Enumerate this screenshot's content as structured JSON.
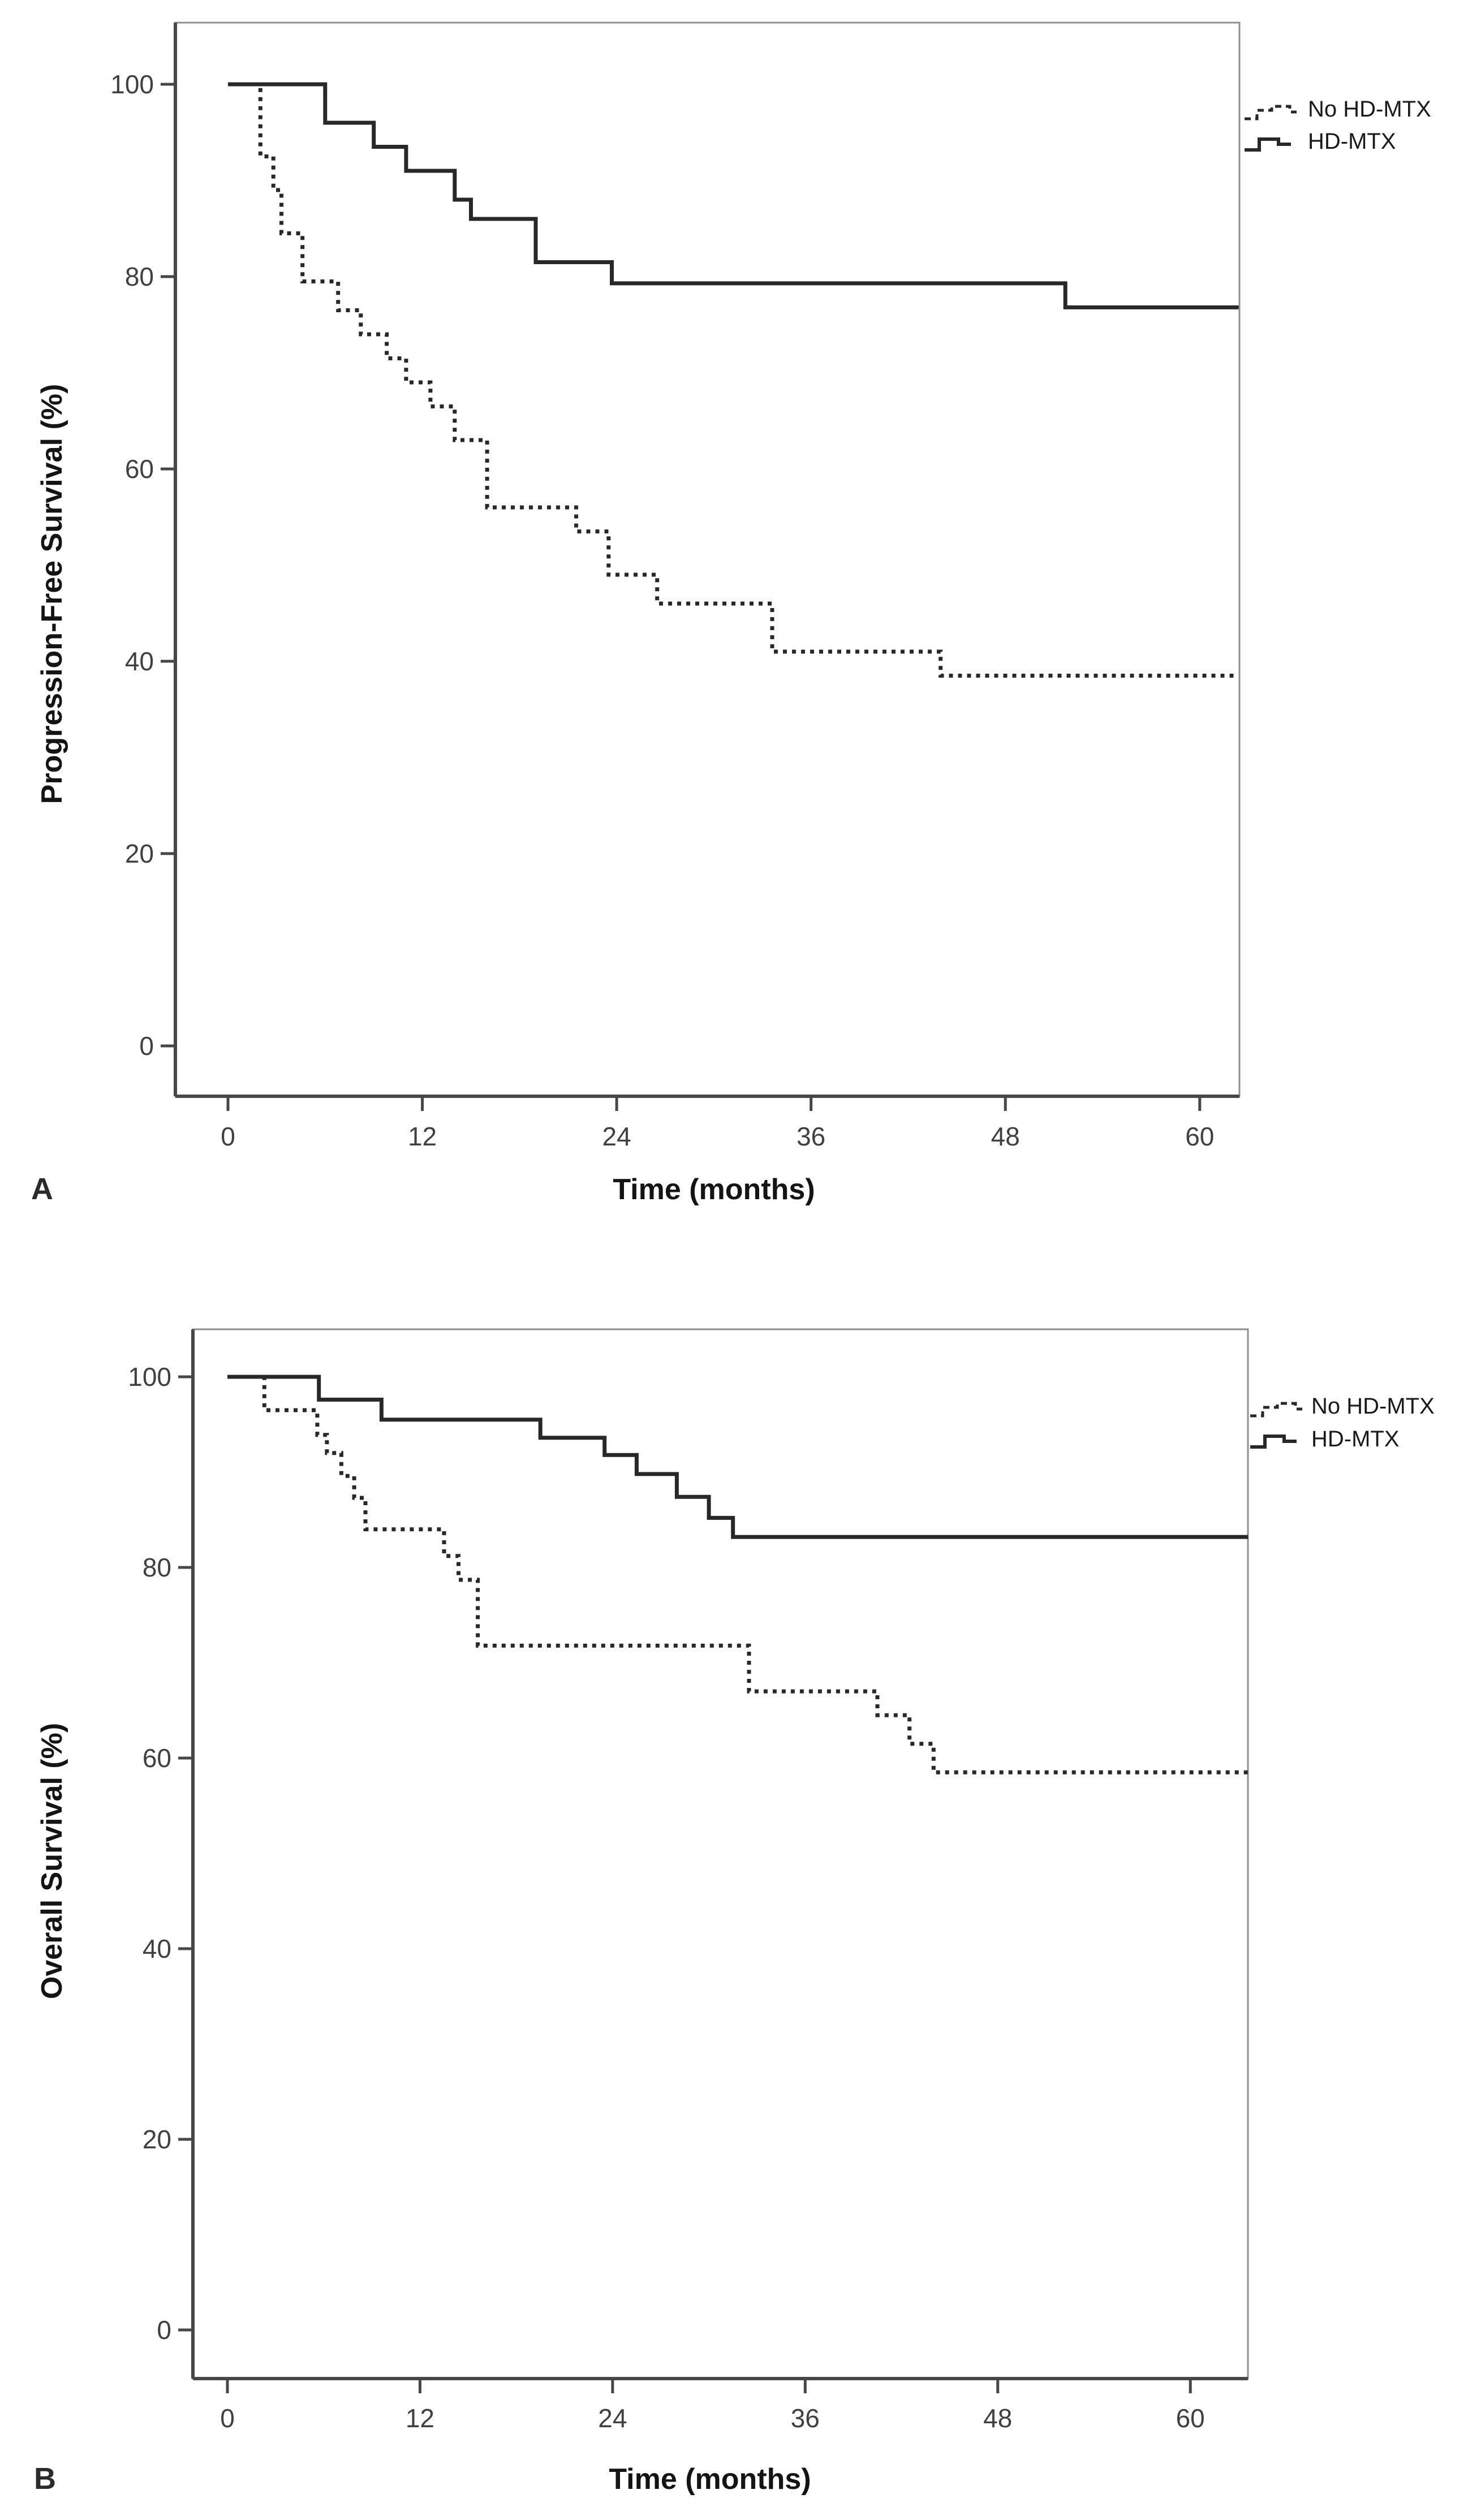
{
  "figure": {
    "background": "#ffffff",
    "curve_color": "#282828",
    "frame_color": "#8f8f8f",
    "axis_color": "#474747",
    "tick_text_color": "#404040",
    "panels": [
      {
        "panel_label": "A",
        "ylabel": "Progression-Free Survival (%)",
        "xlabel": "Time (months)",
        "legend": [
          {
            "label": "No HD-MTX",
            "style": "dotted"
          },
          {
            "label": "HD-MTX",
            "style": "solid"
          }
        ],
        "ytick_labels": [
          "100",
          "80",
          "60",
          "40",
          "20",
          "0"
        ],
        "xtick_labels": [
          "0",
          "12",
          "24",
          "36",
          "48",
          "60"
        ]
      },
      {
        "panel_label": "B",
        "ylabel": "Overall Survival (%)",
        "xlabel": "Time (months)",
        "legend": [
          {
            "label": "No HD-MTX",
            "style": "dotted"
          },
          {
            "label": "HD-MTX",
            "style": "solid"
          }
        ],
        "ytick_labels": [
          "100",
          "80",
          "60",
          "40",
          "20",
          "0"
        ],
        "xtick_labels": [
          "0",
          "12",
          "24",
          "36",
          "48",
          "60"
        ]
      }
    ]
  },
  "chart_data": [
    {
      "type": "line",
      "subtype": "kaplan-meier-step",
      "panel": "A",
      "title": "",
      "xlabel": "Time (months)",
      "ylabel": "Progression-Free Survival (%)",
      "xlim": [
        -3.3,
        64.5
      ],
      "ylim": [
        -5.3,
        106
      ],
      "xticks": [
        0,
        12,
        24,
        36,
        48,
        60
      ],
      "yticks": [
        0,
        20,
        40,
        60,
        80,
        100
      ],
      "grid": false,
      "legend_position": "outside-top-right",
      "end_month": 62.4,
      "series": [
        {
          "name": "No HD-MTX",
          "line_style": "dotted",
          "color": "#282828",
          "steps_time_pct": [
            [
              0,
              100
            ],
            [
              2,
              92.5
            ],
            [
              2.8,
              89
            ],
            [
              3.3,
              84.5
            ],
            [
              4.6,
              79.5
            ],
            [
              6.8,
              76.5
            ],
            [
              8.2,
              74
            ],
            [
              9.8,
              71.5
            ],
            [
              11,
              69
            ],
            [
              12.5,
              66.5
            ],
            [
              14,
              63
            ],
            [
              16,
              56
            ],
            [
              21.5,
              53.5
            ],
            [
              23.5,
              49
            ],
            [
              26.5,
              46
            ],
            [
              33.6,
              41
            ],
            [
              44,
              38.5
            ]
          ]
        },
        {
          "name": "HD-MTX",
          "line_style": "solid",
          "color": "#282828",
          "steps_time_pct": [
            [
              0,
              100
            ],
            [
              6,
              96
            ],
            [
              9,
              93.5
            ],
            [
              11,
              91
            ],
            [
              14,
              88
            ],
            [
              15,
              86
            ],
            [
              19,
              81.5
            ],
            [
              23.7,
              79.3
            ],
            [
              51.7,
              76.8
            ]
          ]
        }
      ]
    },
    {
      "type": "line",
      "subtype": "kaplan-meier-step",
      "panel": "B",
      "title": "",
      "xlabel": "Time (months)",
      "ylabel": "Overall Survival (%)",
      "xlim": [
        -3.3,
        64.5
      ],
      "ylim": [
        -5.3,
        106
      ],
      "xticks": [
        0,
        12,
        24,
        36,
        48,
        60
      ],
      "yticks": [
        0,
        20,
        40,
        60,
        80,
        100
      ],
      "grid": false,
      "legend_position": "outside-top-right",
      "end_month": 63.6,
      "series": [
        {
          "name": "No HD-MTX",
          "line_style": "dotted",
          "color": "#282828",
          "steps_time_pct": [
            [
              0,
              100
            ],
            [
              2.3,
              96.5
            ],
            [
              5.6,
              93.9
            ],
            [
              6.2,
              92
            ],
            [
              7.1,
              89.6
            ],
            [
              7.9,
              87.3
            ],
            [
              8.6,
              84
            ],
            [
              13.5,
              81.2
            ],
            [
              14.4,
              78.7
            ],
            [
              15.6,
              71.8
            ],
            [
              32.5,
              67
            ],
            [
              40.5,
              64.5
            ],
            [
              42.5,
              61.5
            ],
            [
              44,
              58.5
            ]
          ]
        },
        {
          "name": "HD-MTX",
          "line_style": "solid",
          "color": "#282828",
          "steps_time_pct": [
            [
              0,
              100
            ],
            [
              5.7,
              97.6
            ],
            [
              9.6,
              95.5
            ],
            [
              19.5,
              93.6
            ],
            [
              23.5,
              91.8
            ],
            [
              25.5,
              89.8
            ],
            [
              28,
              87.4
            ],
            [
              30,
              85.2
            ],
            [
              31.5,
              83.2
            ]
          ]
        }
      ]
    }
  ]
}
